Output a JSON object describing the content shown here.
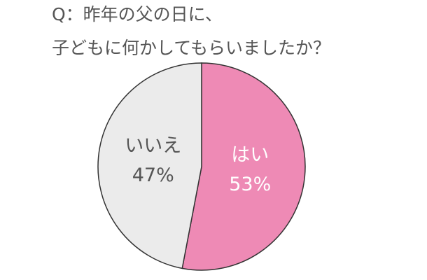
{
  "chart_data": {
    "type": "pie",
    "title": [
      "Q：昨年の父の日に、",
      "子どもに何かしてもらいましたか？"
    ],
    "categories": [
      "はい",
      "いいえ"
    ],
    "values": [
      53,
      47
    ],
    "value_labels": [
      "53%",
      "47%"
    ],
    "colors": [
      "#ee8ab5",
      "#ebebeb"
    ],
    "label_colors": [
      "#ffffff",
      "#555555"
    ]
  }
}
